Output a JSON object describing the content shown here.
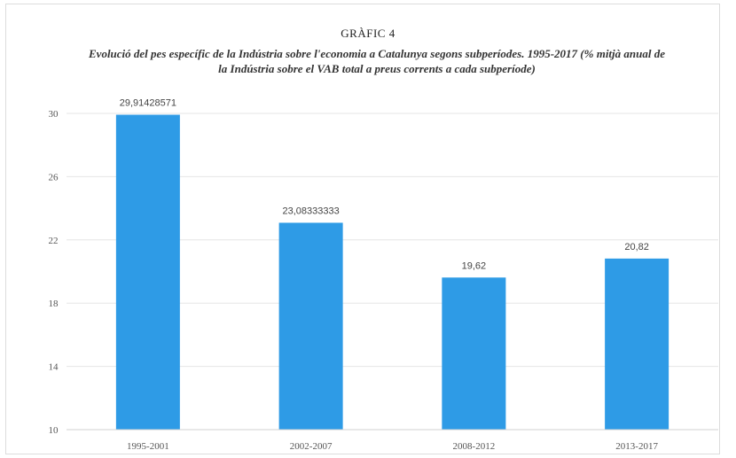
{
  "chart_label": "GRÀFIC 4",
  "chart_data": {
    "type": "bar",
    "title": "Evolució del pes específic de la Indústria sobre l'economia a Catalunya segons subperíodes. 1995-2017 (% mitjà anual de la Indústria sobre el VAB total a preus corrents a cada subperíode)",
    "categories": [
      "1995-2001",
      "2002-2007",
      "2008-2012",
      "2013-2017"
    ],
    "values": [
      29.91428571,
      23.08333333,
      19.62,
      20.82
    ],
    "value_labels": [
      "29,91428571",
      "23,08333333",
      "19,62",
      "20,82"
    ],
    "yticks": [
      "10",
      "14",
      "18",
      "22",
      "26",
      "30"
    ],
    "ylim": [
      10,
      30
    ],
    "xlabel": "",
    "ylabel": "",
    "grid": true,
    "color": "#2e9be6"
  }
}
